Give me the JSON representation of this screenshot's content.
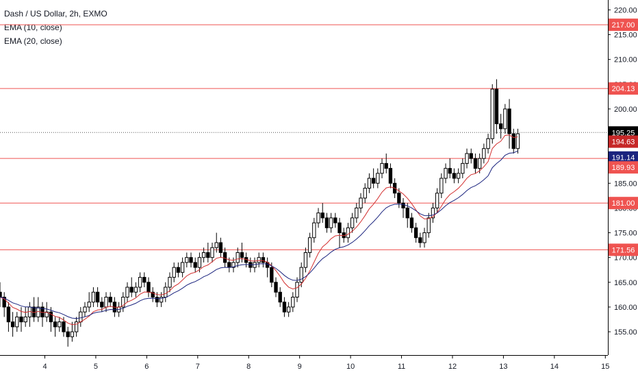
{
  "chart_data": {
    "type": "candlestick",
    "title": "Dash / US Dollar, 2h, EXMO",
    "indicators": [
      {
        "name": "EMA (10, close)",
        "color": "#d32f2f"
      },
      {
        "name": "EMA (20, close)",
        "color": "#1a237e"
      }
    ],
    "ylim": [
      150.3,
      222.0
    ],
    "y_ticks": [
      "155.00",
      "160.00",
      "165.00",
      "170.00",
      "175.00",
      "180.00",
      "185.00",
      "190.00",
      "195.00",
      "200.00",
      "205.00",
      "210.00",
      "215.00",
      "220.00"
    ],
    "x_ticks": [
      "4",
      "5",
      "6",
      "7",
      "8",
      "9",
      "10",
      "11",
      "12",
      "13",
      "14",
      "15"
    ],
    "x_tick_days": [
      4,
      5,
      6,
      7,
      8,
      9,
      10,
      11,
      12,
      13,
      14,
      15
    ],
    "xlim_days": [
      3.12,
      15.05
    ],
    "horizontal_lines": [
      217.0,
      204.13,
      190.0,
      181.0,
      171.56
    ],
    "price_badges": [
      {
        "value": "217.00",
        "y": 217.0,
        "bg": "#ef5350",
        "fg": "#ffffff"
      },
      {
        "value": "204.13",
        "y": 204.13,
        "bg": "#ef5350",
        "fg": "#ffffff"
      },
      {
        "value": "195.25",
        "y": 195.25,
        "bg": "#000000",
        "fg": "#ffffff"
      },
      {
        "value": "194.63",
        "y": 193.4,
        "bg": "#c62828",
        "fg": "#ffffff"
      },
      {
        "value": "191.14",
        "y": 190.2,
        "bg": "#1a237e",
        "fg": "#ffffff"
      },
      {
        "value": "189.93",
        "y": 188.2,
        "bg": "#ef5350",
        "fg": "#ffffff"
      },
      {
        "value": "181.00",
        "y": 181.0,
        "bg": "#ef5350",
        "fg": "#ffffff"
      },
      {
        "value": "171.56",
        "y": 171.56,
        "bg": "#ef5350",
        "fg": "#ffffff"
      }
    ],
    "last_price": 195.25,
    "colors": {
      "line": "#ef5350",
      "ema10": "#d32f2f",
      "ema20": "#1a237e",
      "candle": "#000000",
      "axis": "#000000"
    },
    "candles_start_day": 3.12,
    "candle_interval_days": 0.0833,
    "candles": [
      [
        163,
        162,
        165,
        160
      ],
      [
        162,
        160,
        163,
        158
      ],
      [
        160,
        157,
        161,
        155
      ],
      [
        157,
        156,
        159,
        154
      ],
      [
        156,
        158,
        159,
        155
      ],
      [
        158,
        157,
        160,
        155
      ],
      [
        157,
        158,
        160,
        156
      ],
      [
        158,
        160,
        161,
        156
      ],
      [
        160,
        158,
        162,
        157
      ],
      [
        158,
        160,
        162,
        157
      ],
      [
        160,
        158,
        161,
        156
      ],
      [
        158,
        159,
        161,
        157
      ],
      [
        159,
        157,
        160,
        155
      ],
      [
        157,
        156,
        158,
        154
      ],
      [
        156,
        157,
        158,
        155
      ],
      [
        157,
        155,
        158,
        154
      ],
      [
        155,
        154,
        156,
        152
      ],
      [
        154,
        155,
        157,
        153
      ],
      [
        155,
        157,
        158,
        154
      ],
      [
        157,
        159,
        160,
        156
      ],
      [
        159,
        160,
        161,
        158
      ],
      [
        160,
        161,
        163,
        159
      ],
      [
        161,
        163,
        164,
        160
      ],
      [
        163,
        161,
        164,
        160
      ],
      [
        161,
        160,
        162,
        159
      ],
      [
        160,
        162,
        163,
        159
      ],
      [
        162,
        161,
        163,
        160
      ],
      [
        161,
        159,
        162,
        158
      ],
      [
        159,
        160,
        161,
        158
      ],
      [
        160,
        162,
        163,
        159
      ],
      [
        162,
        164,
        165,
        161
      ],
      [
        164,
        163,
        166,
        162
      ],
      [
        163,
        164,
        165,
        162
      ],
      [
        164,
        166,
        167,
        163
      ],
      [
        166,
        165,
        167,
        164
      ],
      [
        165,
        163,
        166,
        162
      ],
      [
        163,
        162,
        164,
        161
      ],
      [
        162,
        161,
        163,
        160
      ],
      [
        161,
        162,
        163,
        160
      ],
      [
        162,
        164,
        165,
        161
      ],
      [
        164,
        166,
        167,
        163
      ],
      [
        166,
        168,
        169,
        165
      ],
      [
        168,
        167,
        169,
        166
      ],
      [
        167,
        169,
        170,
        166
      ],
      [
        169,
        170,
        171,
        168
      ],
      [
        170,
        169,
        171,
        168
      ],
      [
        169,
        168,
        170,
        167
      ],
      [
        168,
        170,
        171,
        167
      ],
      [
        170,
        171,
        172,
        169
      ],
      [
        171,
        170,
        173,
        169
      ],
      [
        170,
        172,
        173,
        169
      ],
      [
        172,
        173,
        175,
        171
      ],
      [
        173,
        171,
        174,
        170
      ],
      [
        171,
        169,
        172,
        168
      ],
      [
        169,
        168,
        170,
        167
      ],
      [
        168,
        169,
        170,
        167
      ],
      [
        169,
        171,
        172,
        168
      ],
      [
        171,
        170,
        173,
        169
      ],
      [
        170,
        169,
        171,
        168
      ],
      [
        169,
        168,
        170,
        167
      ],
      [
        168,
        169,
        170,
        167
      ],
      [
        169,
        170,
        171,
        168
      ],
      [
        170,
        169,
        171,
        168
      ],
      [
        169,
        168,
        170,
        166
      ],
      [
        168,
        165,
        169,
        164
      ],
      [
        165,
        163,
        166,
        162
      ],
      [
        163,
        161,
        164,
        160
      ],
      [
        161,
        159,
        162,
        158
      ],
      [
        159,
        160,
        161,
        158
      ],
      [
        160,
        162,
        163,
        159
      ],
      [
        162,
        165,
        166,
        161
      ],
      [
        165,
        168,
        169,
        164
      ],
      [
        168,
        171,
        172,
        167
      ],
      [
        171,
        174,
        175,
        170
      ],
      [
        174,
        177,
        178,
        173
      ],
      [
        177,
        179,
        180,
        176
      ],
      [
        179,
        178,
        181,
        177
      ],
      [
        178,
        176,
        179,
        175
      ],
      [
        176,
        178,
        179,
        175
      ],
      [
        178,
        177,
        179,
        176
      ],
      [
        177,
        175,
        178,
        172
      ],
      [
        175,
        174,
        176,
        173
      ],
      [
        174,
        176,
        177,
        173
      ],
      [
        176,
        178,
        179,
        175
      ],
      [
        178,
        180,
        181,
        177
      ],
      [
        180,
        182,
        183,
        179
      ],
      [
        182,
        184,
        185,
        181
      ],
      [
        184,
        186,
        187,
        183
      ],
      [
        186,
        185,
        188,
        184
      ],
      [
        185,
        187,
        188,
        184
      ],
      [
        187,
        189,
        190,
        186
      ],
      [
        189,
        188,
        191,
        187
      ],
      [
        188,
        185,
        189,
        184
      ],
      [
        185,
        183,
        186,
        182
      ],
      [
        183,
        181,
        184,
        180
      ],
      [
        181,
        180,
        182,
        178
      ],
      [
        180,
        178,
        181,
        176
      ],
      [
        178,
        176,
        179,
        175
      ],
      [
        176,
        174,
        177,
        173
      ],
      [
        174,
        173,
        175,
        172
      ],
      [
        173,
        175,
        176,
        172
      ],
      [
        175,
        178,
        179,
        174
      ],
      [
        178,
        180,
        181,
        177
      ],
      [
        180,
        183,
        184,
        179
      ],
      [
        183,
        186,
        187,
        182
      ],
      [
        186,
        188,
        189,
        185
      ],
      [
        188,
        187,
        190,
        186
      ],
      [
        187,
        186,
        188,
        185
      ],
      [
        186,
        187,
        188,
        185
      ],
      [
        187,
        189,
        190,
        186
      ],
      [
        189,
        191,
        192,
        188
      ],
      [
        191,
        190,
        192,
        189
      ],
      [
        190,
        188,
        191,
        187
      ],
      [
        188,
        190,
        191,
        187
      ],
      [
        190,
        192,
        193,
        189
      ],
      [
        192,
        194,
        195,
        191
      ],
      [
        194,
        204,
        205,
        193
      ],
      [
        204,
        197,
        206,
        195
      ],
      [
        197,
        196,
        199,
        194
      ],
      [
        196,
        200,
        201,
        195
      ],
      [
        200,
        195,
        202,
        192
      ],
      [
        195,
        192,
        196,
        191
      ],
      [
        192,
        195,
        196,
        191
      ]
    ]
  }
}
